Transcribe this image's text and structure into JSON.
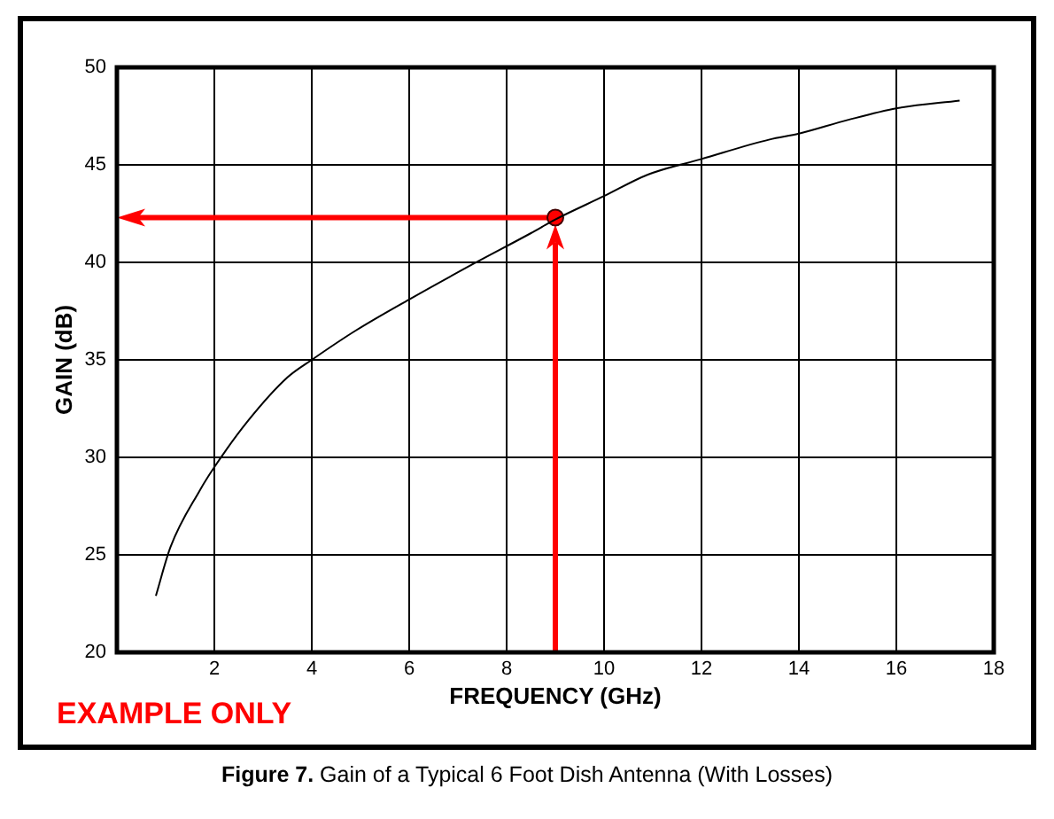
{
  "chart_data": {
    "type": "line",
    "title": "Figure 7. Gain of a Typical 6 Foot Dish Antenna (With Losses)",
    "xlabel": "FREQUENCY (GHz)",
    "ylabel": "GAIN (dB)",
    "xlim": [
      0,
      18
    ],
    "xticks": [
      2,
      4,
      6,
      8,
      10,
      12,
      14,
      16,
      18
    ],
    "ylim": [
      20,
      50
    ],
    "yticks": [
      20,
      25,
      30,
      35,
      40,
      45,
      50
    ],
    "grid": true,
    "annotations": [
      "EXAMPLE ONLY"
    ],
    "series": [
      {
        "type": "line",
        "color": "#000000",
        "marker": "none",
        "x": [
          0.8,
          1.1,
          1.7,
          2,
          2.7,
          3.5,
          4,
          4.9,
          6,
          7.3,
          8.5,
          9,
          10,
          10.9,
          12,
          13.4,
          14,
          15,
          16,
          17.3
        ],
        "values": [
          22.9,
          25.4,
          28.3,
          29.5,
          31.9,
          34.1,
          35,
          36.5,
          38.1,
          39.9,
          41.5,
          42.2,
          43.4,
          44.5,
          45.3,
          46.3,
          46.6,
          47.3,
          47.9,
          48.3
        ]
      },
      {
        "type": "scatter",
        "color": "#ff0000",
        "marker": "circle",
        "x": [
          9
        ],
        "values": [
          42.3
        ]
      }
    ]
  }
}
